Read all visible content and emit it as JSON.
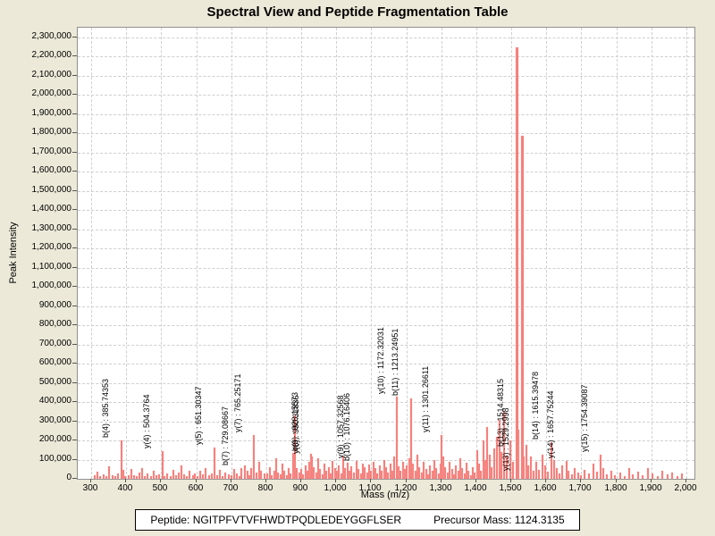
{
  "window": {
    "title": "Spectral View and Peptide Fragmentation Table"
  },
  "footer": {
    "peptide_label": "Peptide:",
    "peptide_sequence": "NGITPFVTVFHWDTPQDLEDEYGGFLSER",
    "precursor_label": "Precursor Mass:",
    "precursor_mass": "1124.3135"
  },
  "colors": {
    "window_background": "#ece9d8",
    "plot_background": "#ffffff",
    "peak": "#f5817d",
    "grid": "#cfcfcf",
    "plot_border": "#919191",
    "text": "#000000"
  },
  "chart_data": {
    "type": "bar",
    "title": "Spectral View and Peptide Fragmentation Table",
    "xlabel": "Mass (m/z)",
    "ylabel": "Peak Intensity",
    "xlim": [
      300,
      2000
    ],
    "xtick_step": 100,
    "ylim": [
      0,
      2300000
    ],
    "ytick_step": 100000,
    "grid": true,
    "legend": "none",
    "annotated_peaks": [
      {
        "label": "b(4) : 385.74353",
        "mz": 385.74,
        "intensity": 200000
      },
      {
        "label": "y(4) : 504.3764",
        "mz": 504.38,
        "intensity": 145000
      },
      {
        "label": "y(5) : 651.30347",
        "mz": 651.3,
        "intensity": 165000
      },
      {
        "label": "b(7) : 729.08667",
        "mz": 729.09,
        "intensity": 55000
      },
      {
        "label": "y(7) : 765.25171",
        "mz": 765.25,
        "intensity": 230000
      },
      {
        "label": "b(9) : 928.15573",
        "mz": 928.16,
        "intensity": 130000
      },
      {
        "label": "y(8) : 930.31836",
        "mz": 930.32,
        "intensity": 115000
      },
      {
        "label": "y(9) : 1057.32568",
        "mz": 1057.33,
        "intensity": 95000
      },
      {
        "label": "b(10) : 1076.16406",
        "mz": 1076.16,
        "intensity": 80000
      },
      {
        "label": "y(10) : 1172.32031",
        "mz": 1172.32,
        "intensity": 430000
      },
      {
        "label": "b(11) : 1213.24951",
        "mz": 1213.25,
        "intensity": 420000
      },
      {
        "label": "y(11) : 1301.26611",
        "mz": 1301.27,
        "intensity": 230000
      },
      {
        "label": "b(13) : 1514.48315",
        "mz": 1514.48,
        "intensity": 2250000
      },
      {
        "label": "y(13) : 1529.2998",
        "mz": 1529.3,
        "intensity": 1790000
      },
      {
        "label": "b(14) : 1615.39478",
        "mz": 1615.39,
        "intensity": 190000
      },
      {
        "label": "y(14) : 1657.75244",
        "mz": 1657.75,
        "intensity": 95000
      },
      {
        "label": "y(15) : 1754.39087",
        "mz": 1754.39,
        "intensity": 125000
      }
    ],
    "background_peaks": [
      [
        310,
        18000
      ],
      [
        318,
        38000
      ],
      [
        326,
        14000
      ],
      [
        336,
        24000
      ],
      [
        344,
        12000
      ],
      [
        352,
        66000
      ],
      [
        360,
        18000
      ],
      [
        368,
        13000
      ],
      [
        376,
        28000
      ],
      [
        392,
        46000
      ],
      [
        398,
        16000
      ],
      [
        406,
        20000
      ],
      [
        414,
        52000
      ],
      [
        422,
        18000
      ],
      [
        430,
        12000
      ],
      [
        438,
        34000
      ],
      [
        446,
        58000
      ],
      [
        454,
        16000
      ],
      [
        462,
        26000
      ],
      [
        470,
        14000
      ],
      [
        478,
        40000
      ],
      [
        486,
        18000
      ],
      [
        494,
        24000
      ],
      [
        510,
        16000
      ],
      [
        518,
        30000
      ],
      [
        526,
        12000
      ],
      [
        534,
        48000
      ],
      [
        542,
        20000
      ],
      [
        550,
        34000
      ],
      [
        558,
        68000
      ],
      [
        566,
        24000
      ],
      [
        574,
        14000
      ],
      [
        582,
        44000
      ],
      [
        590,
        20000
      ],
      [
        596,
        30000
      ],
      [
        604,
        16000
      ],
      [
        612,
        40000
      ],
      [
        620,
        22000
      ],
      [
        628,
        58000
      ],
      [
        636,
        18000
      ],
      [
        644,
        30000
      ],
      [
        660,
        20000
      ],
      [
        668,
        46000
      ],
      [
        676,
        16000
      ],
      [
        684,
        34000
      ],
      [
        692,
        24000
      ],
      [
        700,
        18000
      ],
      [
        708,
        50000
      ],
      [
        716,
        30000
      ],
      [
        724,
        14000
      ],
      [
        738,
        68000
      ],
      [
        746,
        40000
      ],
      [
        752,
        20000
      ],
      [
        758,
        54000
      ],
      [
        772,
        34000
      ],
      [
        780,
        88000
      ],
      [
        786,
        44000
      ],
      [
        794,
        26000
      ],
      [
        802,
        30000
      ],
      [
        810,
        60000
      ],
      [
        816,
        20000
      ],
      [
        822,
        44000
      ],
      [
        828,
        108000
      ],
      [
        834,
        34000
      ],
      [
        840,
        24000
      ],
      [
        846,
        78000
      ],
      [
        852,
        40000
      ],
      [
        858,
        20000
      ],
      [
        864,
        54000
      ],
      [
        870,
        30000
      ],
      [
        876,
        136000
      ],
      [
        882,
        330000
      ],
      [
        888,
        58000
      ],
      [
        894,
        34000
      ],
      [
        900,
        50000
      ],
      [
        906,
        24000
      ],
      [
        912,
        70000
      ],
      [
        918,
        40000
      ],
      [
        924,
        88000
      ],
      [
        936,
        60000
      ],
      [
        942,
        34000
      ],
      [
        948,
        108000
      ],
      [
        954,
        50000
      ],
      [
        960,
        24000
      ],
      [
        966,
        78000
      ],
      [
        972,
        44000
      ],
      [
        978,
        60000
      ],
      [
        984,
        30000
      ],
      [
        990,
        94000
      ],
      [
        996,
        54000
      ],
      [
        1002,
        40000
      ],
      [
        1008,
        70000
      ],
      [
        1014,
        30000
      ],
      [
        1020,
        118000
      ],
      [
        1026,
        54000
      ],
      [
        1032,
        84000
      ],
      [
        1038,
        40000
      ],
      [
        1044,
        64000
      ],
      [
        1050,
        34000
      ],
      [
        1064,
        50000
      ],
      [
        1070,
        28000
      ],
      [
        1082,
        60000
      ],
      [
        1088,
        34000
      ],
      [
        1094,
        74000
      ],
      [
        1100,
        44000
      ],
      [
        1106,
        88000
      ],
      [
        1112,
        54000
      ],
      [
        1118,
        30000
      ],
      [
        1124,
        70000
      ],
      [
        1130,
        40000
      ],
      [
        1136,
        98000
      ],
      [
        1142,
        60000
      ],
      [
        1148,
        34000
      ],
      [
        1154,
        80000
      ],
      [
        1160,
        44000
      ],
      [
        1166,
        118000
      ],
      [
        1178,
        64000
      ],
      [
        1184,
        40000
      ],
      [
        1190,
        88000
      ],
      [
        1196,
        50000
      ],
      [
        1202,
        70000
      ],
      [
        1208,
        108000
      ],
      [
        1220,
        80000
      ],
      [
        1226,
        44000
      ],
      [
        1232,
        128000
      ],
      [
        1238,
        60000
      ],
      [
        1244,
        34000
      ],
      [
        1250,
        88000
      ],
      [
        1256,
        50000
      ],
      [
        1262,
        24000
      ],
      [
        1268,
        70000
      ],
      [
        1274,
        40000
      ],
      [
        1280,
        98000
      ],
      [
        1286,
        54000
      ],
      [
        1292,
        30000
      ],
      [
        1298,
        78000
      ],
      [
        1306,
        118000
      ],
      [
        1312,
        60000
      ],
      [
        1318,
        34000
      ],
      [
        1324,
        88000
      ],
      [
        1330,
        50000
      ],
      [
        1336,
        24000
      ],
      [
        1342,
        70000
      ],
      [
        1348,
        40000
      ],
      [
        1354,
        108000
      ],
      [
        1360,
        54000
      ],
      [
        1366,
        30000
      ],
      [
        1372,
        84000
      ],
      [
        1378,
        44000
      ],
      [
        1384,
        20000
      ],
      [
        1390,
        60000
      ],
      [
        1396,
        34000
      ],
      [
        1402,
        148000
      ],
      [
        1408,
        78000
      ],
      [
        1414,
        44000
      ],
      [
        1420,
        198000
      ],
      [
        1426,
        98000
      ],
      [
        1432,
        268000
      ],
      [
        1438,
        128000
      ],
      [
        1444,
        60000
      ],
      [
        1450,
        158000
      ],
      [
        1458,
        218000
      ],
      [
        1466,
        308000
      ],
      [
        1472,
        138000
      ],
      [
        1480,
        348000
      ],
      [
        1488,
        118000
      ],
      [
        1496,
        198000
      ],
      [
        1505,
        88000
      ],
      [
        1521,
        258000
      ],
      [
        1536,
        118000
      ],
      [
        1542,
        178000
      ],
      [
        1548,
        68000
      ],
      [
        1556,
        118000
      ],
      [
        1564,
        40000
      ],
      [
        1572,
        88000
      ],
      [
        1580,
        48000
      ],
      [
        1588,
        128000
      ],
      [
        1596,
        68000
      ],
      [
        1604,
        38000
      ],
      [
        1622,
        98000
      ],
      [
        1630,
        54000
      ],
      [
        1638,
        28000
      ],
      [
        1646,
        68000
      ],
      [
        1664,
        44000
      ],
      [
        1672,
        24000
      ],
      [
        1680,
        58000
      ],
      [
        1690,
        34000
      ],
      [
        1700,
        20000
      ],
      [
        1710,
        48000
      ],
      [
        1722,
        28000
      ],
      [
        1734,
        78000
      ],
      [
        1746,
        38000
      ],
      [
        1762,
        58000
      ],
      [
        1774,
        24000
      ],
      [
        1786,
        44000
      ],
      [
        1796,
        20000
      ],
      [
        1812,
        34000
      ],
      [
        1824,
        14000
      ],
      [
        1836,
        54000
      ],
      [
        1848,
        24000
      ],
      [
        1862,
        38000
      ],
      [
        1876,
        18000
      ],
      [
        1890,
        58000
      ],
      [
        1904,
        28000
      ],
      [
        1918,
        14000
      ],
      [
        1932,
        44000
      ],
      [
        1946,
        22000
      ],
      [
        1960,
        34000
      ],
      [
        1974,
        14000
      ],
      [
        1986,
        28000
      ]
    ]
  }
}
